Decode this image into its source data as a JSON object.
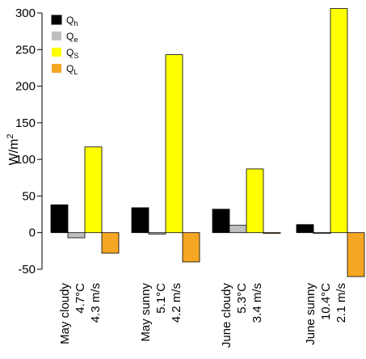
{
  "chart_data": {
    "type": "bar",
    "ylabel": "W/m",
    "ylabel_superscript": "2",
    "ylim": [
      -50,
      300
    ],
    "yticks": [
      "-50",
      "0",
      "50",
      "100",
      "150",
      "200",
      "250",
      "300"
    ],
    "categories": [
      {
        "line1": "May cloudy",
        "line2": "4.7°C",
        "line3": "4.3 m/s"
      },
      {
        "line1": "May sunny",
        "line2": "5.1°C",
        "line3": "4.2 m/s"
      },
      {
        "line1": "June cloudy",
        "line2": "5.3°C",
        "line3": "3.4 m/s"
      },
      {
        "line1": "June sunny",
        "line2": "10.4°C",
        "line3": "2.1 m/s"
      }
    ],
    "series": [
      {
        "name": "Q",
        "sub": "h",
        "color": "#000000",
        "values": [
          38,
          34,
          32,
          11
        ]
      },
      {
        "name": "Q",
        "sub": "e",
        "color": "#bfbfbf",
        "values": [
          -7,
          -2,
          10,
          -1
        ]
      },
      {
        "name": "Q",
        "sub": "S",
        "color": "#ffff00",
        "values": [
          117,
          243,
          87,
          306
        ]
      },
      {
        "name": "Q",
        "sub": "L",
        "color": "#f5a623",
        "values": [
          -28,
          -40,
          -1,
          -60
        ]
      }
    ],
    "legend_position": "top-left",
    "grid": false
  }
}
